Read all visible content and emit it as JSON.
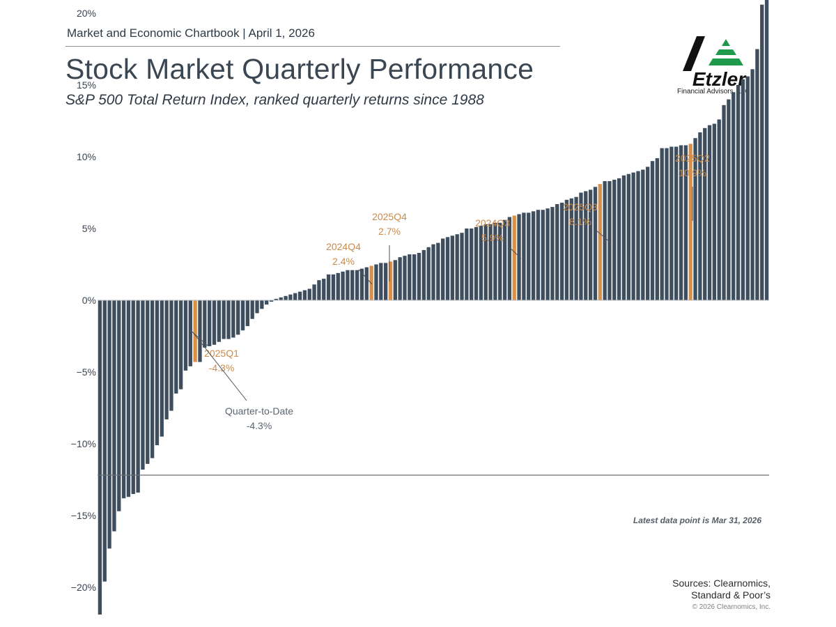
{
  "header": {
    "chartbook": "Market and Economic Chartbook | April 1, 2026",
    "title": "Stock Market Quarterly Performance",
    "subtitle": "S&P 500 Total Return Index, ranked quarterly returns since 1988"
  },
  "logo": {
    "wordmark": "Etzler",
    "caption": "Financial Advisors, LLC"
  },
  "footer": {
    "note": "Latest data point is Mar 31, 2026",
    "sources_line1": "Sources: Clearnomics,",
    "sources_line2": "Standard & Poor’s",
    "copyright": "© 2026 Clearnomics, Inc."
  },
  "colors": {
    "bar": "#3e4e5e",
    "highlight": "#d9904a",
    "annotation_gold": "#c98a4b",
    "annotation_gray": "#5b6470",
    "axis": "#6b7076"
  },
  "chart_data": {
    "type": "bar",
    "title": "Stock Market Quarterly Performance",
    "subtitle": "S&P 500 Total Return Index, ranked quarterly returns since 1988",
    "xlabel": "",
    "ylabel": "",
    "ylim": [
      -24,
      22
    ],
    "yticks": [
      20,
      15,
      10,
      5,
      0,
      -5,
      -10,
      -15,
      -20
    ],
    "ytick_labels": [
      "20%",
      "15%",
      "10%",
      "5%",
      "0%",
      "−5%",
      "−10%",
      "−15%",
      "−20%"
    ],
    "grid": false,
    "values": [
      -21.9,
      -19.6,
      -17.3,
      -16.1,
      -14.7,
      -13.8,
      -13.7,
      -13.5,
      -13.4,
      -11.8,
      -11.4,
      -11.0,
      -10.1,
      -9.5,
      -8.3,
      -7.7,
      -6.5,
      -6.2,
      -4.9,
      -4.6,
      -4.3,
      -4.3,
      -3.3,
      -3.2,
      -3.1,
      -2.9,
      -2.7,
      -2.7,
      -2.6,
      -2.4,
      -2.1,
      -1.8,
      -1.3,
      -0.9,
      -0.6,
      -0.3,
      -0.1,
      0.1,
      0.2,
      0.3,
      0.4,
      0.5,
      0.6,
      0.7,
      0.8,
      1.1,
      1.4,
      1.5,
      1.8,
      1.8,
      1.9,
      2.0,
      2.1,
      2.1,
      2.1,
      2.2,
      2.3,
      2.4,
      2.5,
      2.6,
      2.6,
      2.7,
      2.8,
      3.0,
      3.1,
      3.2,
      3.2,
      3.3,
      3.5,
      3.7,
      3.9,
      4.0,
      4.3,
      4.4,
      4.5,
      4.6,
      4.7,
      5.0,
      5.0,
      5.1,
      5.2,
      5.3,
      5.3,
      5.4,
      5.4,
      5.6,
      5.8,
      5.9,
      6.0,
      6.1,
      6.1,
      6.2,
      6.3,
      6.3,
      6.4,
      6.5,
      6.7,
      6.8,
      7.0,
      7.1,
      7.2,
      7.5,
      7.6,
      7.7,
      7.9,
      8.1,
      8.3,
      8.3,
      8.4,
      8.5,
      8.7,
      8.8,
      8.9,
      9.0,
      9.1,
      9.3,
      9.7,
      9.9,
      10.6,
      10.6,
      10.7,
      10.7,
      10.8,
      10.8,
      10.9,
      11.3,
      11.7,
      12.0,
      12.2,
      12.3,
      12.6,
      13.6,
      14.0,
      14.5,
      15.0,
      15.4,
      15.6,
      16.1,
      17.5,
      20.6,
      21.3
    ],
    "highlighted_indices": [
      20,
      57,
      61,
      87,
      105,
      124
    ],
    "annotations": [
      {
        "label": "2025Q1",
        "value": "-4.3%",
        "index": 20,
        "style": "gold"
      },
      {
        "label": "Quarter-to-Date",
        "value": "-4.3%",
        "index": 21,
        "style": "gray"
      },
      {
        "label": "2024Q4",
        "value": "2.4%",
        "index": 57,
        "style": "gold"
      },
      {
        "label": "2025Q4",
        "value": "2.7%",
        "index": 61,
        "style": "gold"
      },
      {
        "label": "2024Q3",
        "value": "5.9%",
        "index": 87,
        "style": "gold"
      },
      {
        "label": "2025Q3",
        "value": "8.1%",
        "index": 105,
        "style": "gold"
      },
      {
        "label": "2025Q2",
        "value": "10.9%",
        "index": 124,
        "style": "gold"
      }
    ]
  }
}
